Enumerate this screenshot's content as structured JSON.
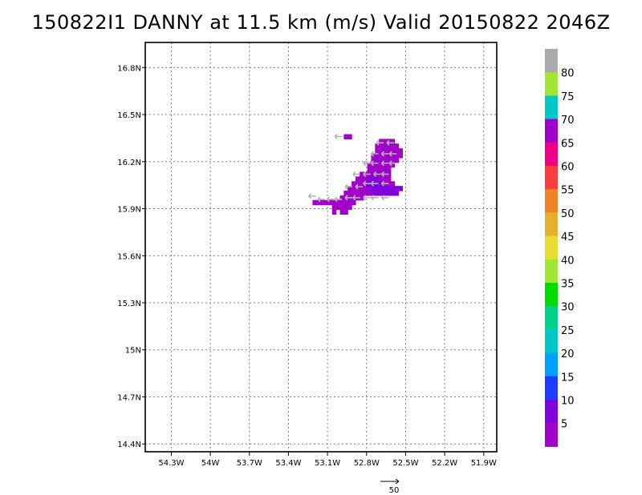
{
  "title": "150822I1 DANNY at 11.5 km (m/s) Valid 20150822 2046Z",
  "chart_data": {
    "type": "heatmap",
    "title": "150822I1 DANNY at 11.5 km (m/s) Valid 20150822 2046Z",
    "x_ticks": [
      "54.3W",
      "54W",
      "53.7W",
      "53.4W",
      "53.1W",
      "52.8W",
      "52.5W",
      "52.2W",
      "51.9W"
    ],
    "x_tick_values": [
      -54.3,
      -54.0,
      -53.7,
      -53.4,
      -53.1,
      -52.8,
      -52.5,
      -52.2,
      -51.9
    ],
    "y_ticks": [
      "16.8N",
      "16.5N",
      "16.2N",
      "15.9N",
      "15.6N",
      "15.3N",
      "15N",
      "14.7N",
      "14.4N"
    ],
    "y_tick_values": [
      16.8,
      16.5,
      16.2,
      15.9,
      15.6,
      15.3,
      15.0,
      14.7,
      14.4
    ],
    "xlim": [
      -54.5,
      -51.8
    ],
    "ylim": [
      14.35,
      16.96
    ],
    "grid": true,
    "colorbar": {
      "position": "right",
      "labels": [
        "5",
        "10",
        "15",
        "20",
        "25",
        "30",
        "35",
        "40",
        "45",
        "50",
        "55",
        "60",
        "65",
        "70",
        "75",
        "80"
      ],
      "colors": [
        "#a000c8",
        "#8200dc",
        "#1e3cff",
        "#00a0ff",
        "#00c8c8",
        "#00d28c",
        "#00dc00",
        "#a0e632",
        "#e6dc32",
        "#e6af2d",
        "#f08228",
        "#fa3c3c",
        "#f00082",
        "#a000c8",
        "#00c8c8",
        "#a0e632",
        "#aaaaaa"
      ]
    },
    "cell_size_deg": 0.03,
    "cells": [
      {
        "lon": -52.69,
        "lat": 16.33,
        "v": 3
      },
      {
        "lon": -52.66,
        "lat": 16.33,
        "v": 3
      },
      {
        "lon": -52.63,
        "lat": 16.33,
        "v": 3
      },
      {
        "lon": -52.6,
        "lat": 16.33,
        "v": 3
      },
      {
        "lon": -52.72,
        "lat": 16.3,
        "v": 3
      },
      {
        "lon": -52.69,
        "lat": 16.3,
        "v": 3
      },
      {
        "lon": -52.66,
        "lat": 16.3,
        "v": 3
      },
      {
        "lon": -52.63,
        "lat": 16.3,
        "v": 3
      },
      {
        "lon": -52.6,
        "lat": 16.3,
        "v": 3
      },
      {
        "lon": -52.57,
        "lat": 16.3,
        "v": 3
      },
      {
        "lon": -52.72,
        "lat": 16.27,
        "v": 3
      },
      {
        "lon": -52.69,
        "lat": 16.27,
        "v": 3
      },
      {
        "lon": -52.66,
        "lat": 16.27,
        "v": 3
      },
      {
        "lon": -52.63,
        "lat": 16.27,
        "v": 3
      },
      {
        "lon": -52.6,
        "lat": 16.27,
        "v": 3
      },
      {
        "lon": -52.57,
        "lat": 16.27,
        "v": 3
      },
      {
        "lon": -52.54,
        "lat": 16.27,
        "v": 3
      },
      {
        "lon": -52.75,
        "lat": 16.24,
        "v": 3
      },
      {
        "lon": -52.72,
        "lat": 16.24,
        "v": 3
      },
      {
        "lon": -52.69,
        "lat": 16.24,
        "v": 3
      },
      {
        "lon": -52.66,
        "lat": 16.24,
        "v": 3
      },
      {
        "lon": -52.63,
        "lat": 16.24,
        "v": 3
      },
      {
        "lon": -52.6,
        "lat": 16.24,
        "v": 3
      },
      {
        "lon": -52.57,
        "lat": 16.24,
        "v": 3
      },
      {
        "lon": -52.54,
        "lat": 16.24,
        "v": 3
      },
      {
        "lon": -52.75,
        "lat": 16.21,
        "v": 3
      },
      {
        "lon": -52.72,
        "lat": 16.21,
        "v": 3
      },
      {
        "lon": -52.69,
        "lat": 16.21,
        "v": 3
      },
      {
        "lon": -52.66,
        "lat": 16.21,
        "v": 3
      },
      {
        "lon": -52.63,
        "lat": 16.21,
        "v": 3
      },
      {
        "lon": -52.6,
        "lat": 16.21,
        "v": 3
      },
      {
        "lon": -52.57,
        "lat": 16.21,
        "v": 3
      },
      {
        "lon": -52.78,
        "lat": 16.18,
        "v": 3
      },
      {
        "lon": -52.75,
        "lat": 16.18,
        "v": 3
      },
      {
        "lon": -52.72,
        "lat": 16.18,
        "v": 3
      },
      {
        "lon": -52.69,
        "lat": 16.18,
        "v": 3
      },
      {
        "lon": -52.66,
        "lat": 16.18,
        "v": 3
      },
      {
        "lon": -52.63,
        "lat": 16.18,
        "v": 3
      },
      {
        "lon": -52.6,
        "lat": 16.18,
        "v": 3
      },
      {
        "lon": -52.78,
        "lat": 16.15,
        "v": 3
      },
      {
        "lon": -52.75,
        "lat": 16.15,
        "v": 3
      },
      {
        "lon": -52.72,
        "lat": 16.15,
        "v": 3
      },
      {
        "lon": -52.69,
        "lat": 16.15,
        "v": 3
      },
      {
        "lon": -52.66,
        "lat": 16.15,
        "v": 3
      },
      {
        "lon": -52.63,
        "lat": 16.15,
        "v": 3
      },
      {
        "lon": -52.84,
        "lat": 16.12,
        "v": 3
      },
      {
        "lon": -52.81,
        "lat": 16.12,
        "v": 3
      },
      {
        "lon": -52.78,
        "lat": 16.12,
        "v": 3
      },
      {
        "lon": -52.75,
        "lat": 16.12,
        "v": 3
      },
      {
        "lon": -52.72,
        "lat": 16.12,
        "v": 2
      },
      {
        "lon": -52.69,
        "lat": 16.12,
        "v": 3
      },
      {
        "lon": -52.66,
        "lat": 16.12,
        "v": 3
      },
      {
        "lon": -52.63,
        "lat": 16.12,
        "v": 3
      },
      {
        "lon": -52.87,
        "lat": 16.09,
        "v": 3
      },
      {
        "lon": -52.84,
        "lat": 16.09,
        "v": 3
      },
      {
        "lon": -52.81,
        "lat": 16.09,
        "v": 3
      },
      {
        "lon": -52.78,
        "lat": 16.09,
        "v": 2
      },
      {
        "lon": -52.75,
        "lat": 16.09,
        "v": 2
      },
      {
        "lon": -52.72,
        "lat": 16.09,
        "v": 2
      },
      {
        "lon": -52.69,
        "lat": 16.09,
        "v": 3
      },
      {
        "lon": -52.66,
        "lat": 16.09,
        "v": 3
      },
      {
        "lon": -52.63,
        "lat": 16.09,
        "v": 3
      },
      {
        "lon": -52.9,
        "lat": 16.06,
        "v": 3
      },
      {
        "lon": -52.87,
        "lat": 16.06,
        "v": 3
      },
      {
        "lon": -52.84,
        "lat": 16.06,
        "v": 3
      },
      {
        "lon": -52.81,
        "lat": 16.06,
        "v": 2
      },
      {
        "lon": -52.78,
        "lat": 16.06,
        "v": 2
      },
      {
        "lon": -52.75,
        "lat": 16.06,
        "v": 2
      },
      {
        "lon": -52.72,
        "lat": 16.06,
        "v": 2
      },
      {
        "lon": -52.69,
        "lat": 16.06,
        "v": 2
      },
      {
        "lon": -52.66,
        "lat": 16.06,
        "v": 3
      },
      {
        "lon": -52.63,
        "lat": 16.06,
        "v": 3
      },
      {
        "lon": -52.6,
        "lat": 16.06,
        "v": 3
      },
      {
        "lon": -52.93,
        "lat": 16.03,
        "v": 3
      },
      {
        "lon": -52.9,
        "lat": 16.03,
        "v": 3
      },
      {
        "lon": -52.87,
        "lat": 16.03,
        "v": 3
      },
      {
        "lon": -52.84,
        "lat": 16.03,
        "v": 3
      },
      {
        "lon": -52.81,
        "lat": 16.03,
        "v": 3
      },
      {
        "lon": -52.78,
        "lat": 16.03,
        "v": 2
      },
      {
        "lon": -52.75,
        "lat": 16.03,
        "v": 2
      },
      {
        "lon": -52.72,
        "lat": 16.03,
        "v": 2
      },
      {
        "lon": -52.69,
        "lat": 16.03,
        "v": 2
      },
      {
        "lon": -52.66,
        "lat": 16.03,
        "v": 2
      },
      {
        "lon": -52.63,
        "lat": 16.03,
        "v": 2
      },
      {
        "lon": -52.6,
        "lat": 16.03,
        "v": 2
      },
      {
        "lon": -52.57,
        "lat": 16.03,
        "v": 2
      },
      {
        "lon": -52.54,
        "lat": 16.03,
        "v": 2
      },
      {
        "lon": -52.96,
        "lat": 16.0,
        "v": 3
      },
      {
        "lon": -52.93,
        "lat": 16.0,
        "v": 3
      },
      {
        "lon": -52.9,
        "lat": 16.0,
        "v": 3
      },
      {
        "lon": -52.87,
        "lat": 16.0,
        "v": 3
      },
      {
        "lon": -52.84,
        "lat": 16.0,
        "v": 3
      },
      {
        "lon": -52.81,
        "lat": 16.0,
        "v": 3
      },
      {
        "lon": -52.78,
        "lat": 16.0,
        "v": 3
      },
      {
        "lon": -52.75,
        "lat": 16.0,
        "v": 2
      },
      {
        "lon": -52.72,
        "lat": 16.0,
        "v": 2
      },
      {
        "lon": -52.69,
        "lat": 16.0,
        "v": 2
      },
      {
        "lon": -52.66,
        "lat": 16.0,
        "v": 2
      },
      {
        "lon": -52.63,
        "lat": 16.0,
        "v": 2
      },
      {
        "lon": -52.6,
        "lat": 16.0,
        "v": 2
      },
      {
        "lon": -52.57,
        "lat": 16.0,
        "v": 2
      },
      {
        "lon": -52.99,
        "lat": 15.97,
        "v": 3
      },
      {
        "lon": -52.96,
        "lat": 15.97,
        "v": 3
      },
      {
        "lon": -52.93,
        "lat": 15.97,
        "v": 3
      },
      {
        "lon": -52.9,
        "lat": 15.97,
        "v": 3
      },
      {
        "lon": -52.87,
        "lat": 15.97,
        "v": 3
      },
      {
        "lon": -52.84,
        "lat": 15.97,
        "v": 3
      },
      {
        "lon": -53.2,
        "lat": 15.94,
        "v": 3
      },
      {
        "lon": -53.17,
        "lat": 15.94,
        "v": 3
      },
      {
        "lon": -53.14,
        "lat": 15.94,
        "v": 3
      },
      {
        "lon": -53.11,
        "lat": 15.94,
        "v": 3
      },
      {
        "lon": -53.08,
        "lat": 15.94,
        "v": 3
      },
      {
        "lon": -53.05,
        "lat": 15.94,
        "v": 3
      },
      {
        "lon": -53.02,
        "lat": 15.94,
        "v": 3
      },
      {
        "lon": -52.99,
        "lat": 15.94,
        "v": 3
      },
      {
        "lon": -52.96,
        "lat": 15.94,
        "v": 3
      },
      {
        "lon": -52.93,
        "lat": 15.94,
        "v": 3
      },
      {
        "lon": -52.9,
        "lat": 15.94,
        "v": 3
      },
      {
        "lon": -53.05,
        "lat": 15.91,
        "v": 3
      },
      {
        "lon": -53.02,
        "lat": 15.91,
        "v": 3
      },
      {
        "lon": -52.99,
        "lat": 15.91,
        "v": 3
      },
      {
        "lon": -52.96,
        "lat": 15.91,
        "v": 3
      },
      {
        "lon": -52.93,
        "lat": 15.91,
        "v": 3
      },
      {
        "lon": -53.05,
        "lat": 15.88,
        "v": 3
      },
      {
        "lon": -52.99,
        "lat": 15.88,
        "v": 3
      },
      {
        "lon": -52.96,
        "lat": 15.88,
        "v": 3
      },
      {
        "lon": -52.96,
        "lat": 16.36,
        "v": 3
      },
      {
        "lon": -52.93,
        "lat": 16.36,
        "v": 3
      }
    ],
    "vectors": [
      {
        "lon": -53.22,
        "lat": 15.98
      },
      {
        "lon": -53.15,
        "lat": 15.96
      },
      {
        "lon": -53.08,
        "lat": 15.96
      },
      {
        "lon": -53.02,
        "lat": 15.96
      },
      {
        "lon": -52.94,
        "lat": 15.97
      },
      {
        "lon": -52.88,
        "lat": 15.97
      },
      {
        "lon": -52.8,
        "lat": 15.97
      },
      {
        "lon": -52.74,
        "lat": 15.97
      },
      {
        "lon": -52.66,
        "lat": 15.97
      },
      {
        "lon": -52.94,
        "lat": 16.04
      },
      {
        "lon": -52.86,
        "lat": 16.04
      },
      {
        "lon": -52.8,
        "lat": 16.06
      },
      {
        "lon": -52.74,
        "lat": 16.06
      },
      {
        "lon": -52.66,
        "lat": 16.06
      },
      {
        "lon": -52.88,
        "lat": 16.12
      },
      {
        "lon": -52.8,
        "lat": 16.12
      },
      {
        "lon": -52.72,
        "lat": 16.12
      },
      {
        "lon": -52.66,
        "lat": 16.12
      },
      {
        "lon": -52.8,
        "lat": 16.19
      },
      {
        "lon": -52.74,
        "lat": 16.19
      },
      {
        "lon": -52.66,
        "lat": 16.19
      },
      {
        "lon": -52.6,
        "lat": 16.19
      },
      {
        "lon": -52.74,
        "lat": 16.25
      },
      {
        "lon": -52.66,
        "lat": 16.25
      },
      {
        "lon": -52.6,
        "lat": 16.25
      },
      {
        "lon": -52.7,
        "lat": 16.32
      },
      {
        "lon": -52.62,
        "lat": 16.32
      },
      {
        "lon": -53.02,
        "lat": 16.36
      }
    ],
    "reference_vector": {
      "label": "50"
    }
  }
}
